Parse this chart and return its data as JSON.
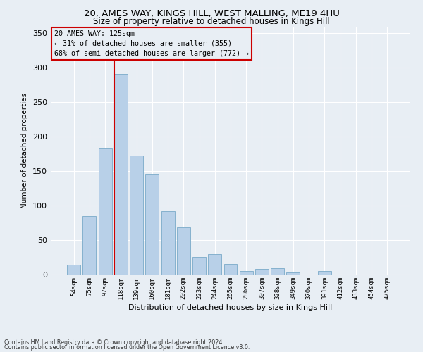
{
  "title1": "20, AMES WAY, KINGS HILL, WEST MALLING, ME19 4HU",
  "title2": "Size of property relative to detached houses in Kings Hill",
  "xlabel": "Distribution of detached houses by size in Kings Hill",
  "ylabel": "Number of detached properties",
  "categories": [
    "54sqm",
    "75sqm",
    "97sqm",
    "118sqm",
    "139sqm",
    "160sqm",
    "181sqm",
    "202sqm",
    "223sqm",
    "244sqm",
    "265sqm",
    "286sqm",
    "307sqm",
    "328sqm",
    "349sqm",
    "370sqm",
    "391sqm",
    "412sqm",
    "433sqm",
    "454sqm",
    "475sqm"
  ],
  "values": [
    14,
    85,
    184,
    291,
    173,
    146,
    92,
    68,
    26,
    30,
    15,
    5,
    8,
    9,
    3,
    0,
    5,
    0,
    0,
    0,
    0
  ],
  "bar_color": "#b8d0e8",
  "bar_edgecolor": "#7aaac8",
  "highlight_color": "#cc0000",
  "property_bin_index": 3,
  "annotation_text": "20 AMES WAY: 125sqm\n← 31% of detached houses are smaller (355)\n68% of semi-detached houses are larger (772) →",
  "annotation_box_edgecolor": "#cc0000",
  "footer1": "Contains HM Land Registry data © Crown copyright and database right 2024.",
  "footer2": "Contains public sector information licensed under the Open Government Licence v3.0.",
  "ylim": [
    0,
    360
  ],
  "background_color": "#e8eef4",
  "grid_color": "#ffffff"
}
